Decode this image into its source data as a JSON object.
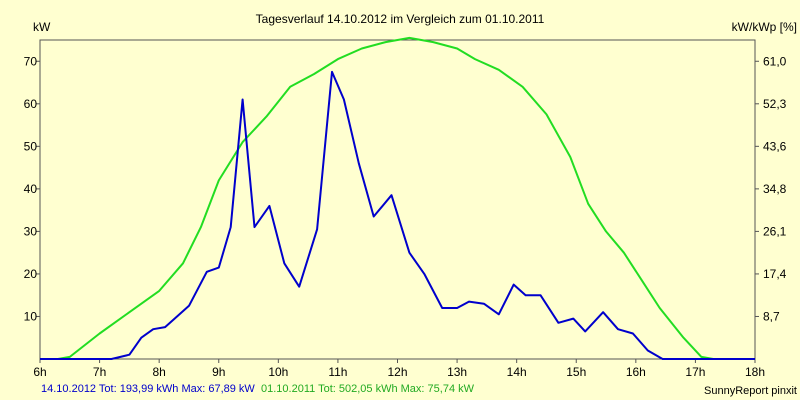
{
  "chart_data": {
    "type": "line",
    "title": "Tagesverlauf 14.10.2012 im Vergleich zum 01.10.2011",
    "ylabel_left": "kW",
    "ylabel_right": "kW/kWp [%]",
    "credit": "SunnyReport pinxit",
    "x_ticks": [
      "6h",
      "7h",
      "8h",
      "9h",
      "10h",
      "11h",
      "12h",
      "13h",
      "14h",
      "15h",
      "16h",
      "17h",
      "18h"
    ],
    "y_left_ticks": [
      "10",
      "20",
      "30",
      "40",
      "50",
      "60",
      "70"
    ],
    "y_right_ticks": [
      "8,7",
      "17,4",
      "26,1",
      "34,8",
      "43,6",
      "52,3",
      "61,0"
    ],
    "xlim": [
      6,
      18
    ],
    "ylim": [
      0,
      75
    ],
    "grid": false,
    "series": [
      {
        "name": "14.10.2012",
        "color": "#0000CC",
        "legend_label": "14.10.2012 Tot: 193,99 kWh Max: 67,89 kW",
        "x": [
          6.0,
          6.3,
          6.6,
          6.9,
          7.2,
          7.5,
          7.7,
          7.9,
          8.1,
          8.3,
          8.5,
          8.8,
          9.0,
          9.2,
          9.4,
          9.6,
          9.85,
          10.1,
          10.35,
          10.65,
          10.9,
          11.1,
          11.35,
          11.6,
          11.9,
          12.2,
          12.45,
          12.75,
          13.0,
          13.2,
          13.45,
          13.7,
          13.95,
          14.15,
          14.4,
          14.7,
          14.95,
          15.15,
          15.45,
          15.7,
          15.95,
          16.2,
          16.45,
          16.7,
          17.0,
          17.3,
          17.5,
          17.7,
          18.0
        ],
        "y": [
          0,
          0,
          0,
          0,
          0,
          1,
          5,
          7,
          7.5,
          10,
          12.5,
          20.5,
          21.5,
          31,
          61,
          31,
          36,
          22.5,
          17,
          30.5,
          67.5,
          61,
          46,
          33.5,
          38.5,
          25,
          20,
          12,
          12,
          13.5,
          13,
          10.5,
          17.5,
          15,
          15,
          8.5,
          9.5,
          6.5,
          11,
          7,
          6,
          2,
          0,
          0,
          0,
          0,
          0,
          0,
          0
        ]
      },
      {
        "name": "01.10.2011",
        "color": "#22DD22",
        "legend_label": "01.10.2011 Tot: 502,05 kWh Max: 75,74 kW",
        "x": [
          6.0,
          6.3,
          6.5,
          7.0,
          7.5,
          8.0,
          8.4,
          8.7,
          9.0,
          9.4,
          9.8,
          10.2,
          10.6,
          11.0,
          11.4,
          11.8,
          12.2,
          12.6,
          13.0,
          13.3,
          13.7,
          14.1,
          14.5,
          14.9,
          15.2,
          15.5,
          15.8,
          16.1,
          16.4,
          16.8,
          17.1,
          17.3,
          17.5,
          17.8,
          18.0
        ],
        "y": [
          0,
          0,
          0.5,
          6,
          11,
          16,
          22.5,
          31,
          42,
          51,
          57,
          64,
          67,
          70.5,
          73,
          74.5,
          75.5,
          74.5,
          73,
          70.5,
          68,
          64,
          57.5,
          47.5,
          36.5,
          30,
          25,
          18.5,
          12,
          5,
          0.5,
          0,
          0,
          0,
          0
        ]
      }
    ]
  }
}
